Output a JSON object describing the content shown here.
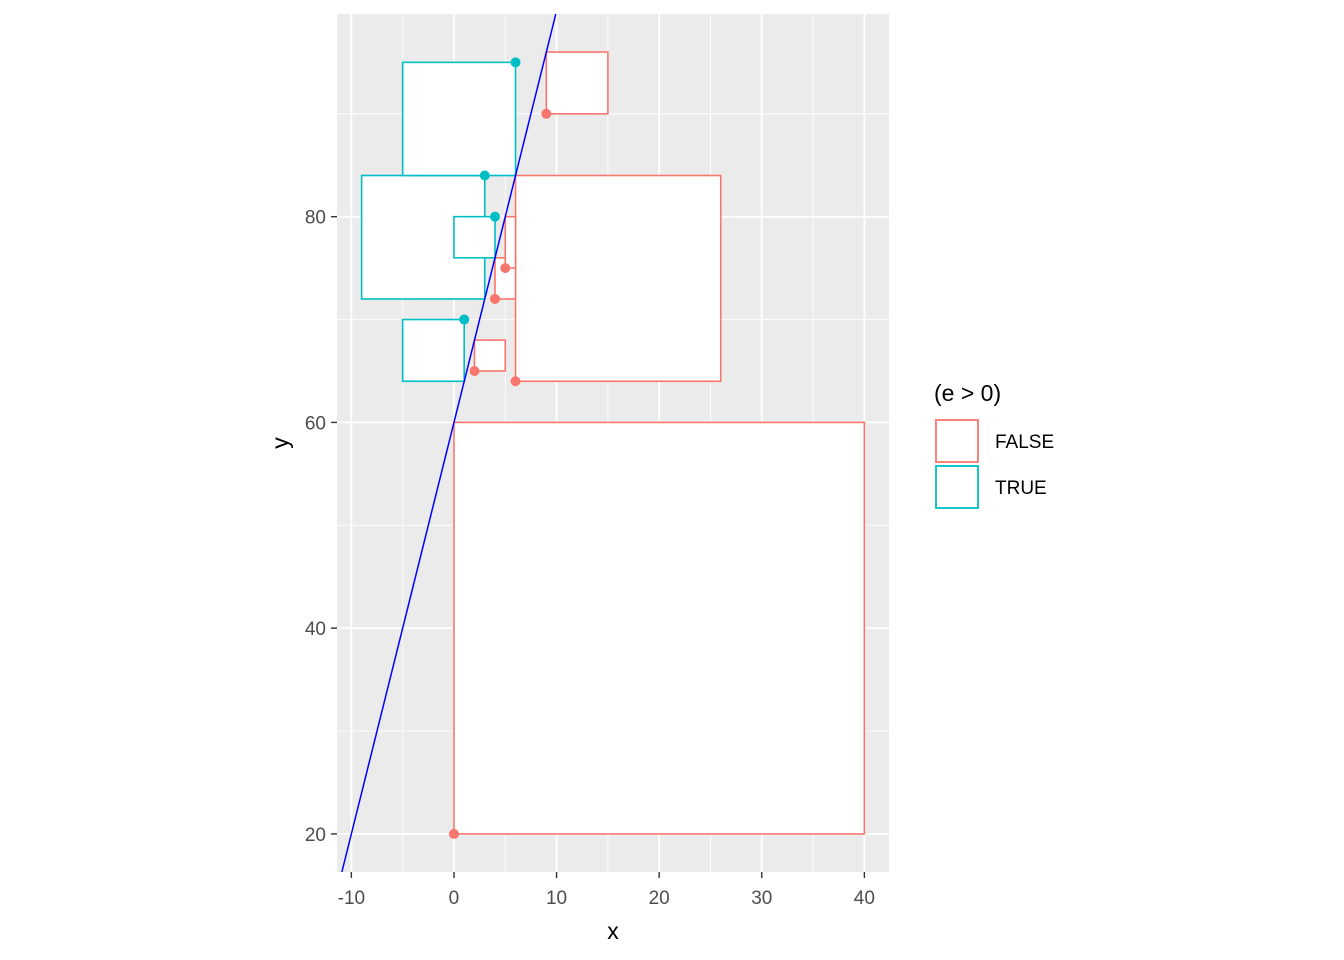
{
  "chart_data": {
    "type": "scatter",
    "title": "",
    "xlabel": "x",
    "ylabel": "y",
    "xlim": [
      -11.4,
      42.4
    ],
    "ylim": [
      16.3,
      99.7
    ],
    "x_ticks": [
      -10,
      0,
      10,
      20,
      30,
      40
    ],
    "y_ticks": [
      20,
      40,
      60,
      80
    ],
    "grid": true,
    "panel_background": "#EBEBEB",
    "legend": {
      "title": "(e > 0)",
      "position": "right",
      "entries": [
        {
          "label": "FALSE",
          "color": "#F8766D"
        },
        {
          "label": "TRUE",
          "color": "#00BFC4"
        }
      ]
    },
    "line": {
      "intercept": 60,
      "slope": 4,
      "color": "#0000FF"
    },
    "points": [
      {
        "x": 0,
        "y": 20,
        "group": "FALSE"
      },
      {
        "x": 2,
        "y": 65,
        "group": "FALSE"
      },
      {
        "x": 4,
        "y": 72,
        "group": "FALSE"
      },
      {
        "x": 5,
        "y": 75,
        "group": "FALSE"
      },
      {
        "x": 6,
        "y": 64,
        "group": "FALSE"
      },
      {
        "x": 9,
        "y": 90,
        "group": "FALSE"
      },
      {
        "x": 1,
        "y": 70,
        "group": "TRUE"
      },
      {
        "x": 3,
        "y": 84,
        "group": "TRUE"
      },
      {
        "x": 4,
        "y": 80,
        "group": "TRUE"
      },
      {
        "x": 6,
        "y": 95,
        "group": "TRUE"
      }
    ],
    "rects": [
      {
        "xmin": 0,
        "xmax": 40,
        "ymin": 20,
        "ymax": 60,
        "group": "FALSE"
      },
      {
        "xmin": 6,
        "xmax": 26,
        "ymin": 64,
        "ymax": 84,
        "group": "FALSE"
      },
      {
        "xmin": 2,
        "xmax": 5,
        "ymin": 65,
        "ymax": 68,
        "group": "FALSE"
      },
      {
        "xmin": 4,
        "xmax": 6,
        "ymin": 72,
        "ymax": 76,
        "group": "FALSE"
      },
      {
        "xmin": 5,
        "xmax": 6,
        "ymin": 75,
        "ymax": 80,
        "group": "FALSE"
      },
      {
        "xmin": 9,
        "xmax": 15,
        "ymin": 90,
        "ymax": 96,
        "group": "FALSE"
      },
      {
        "xmin": -5,
        "xmax": 1,
        "ymin": 64,
        "ymax": 70,
        "group": "TRUE"
      },
      {
        "xmin": -9,
        "xmax": 3,
        "ymin": 72,
        "ymax": 84,
        "group": "TRUE"
      },
      {
        "xmin": 0,
        "xmax": 4,
        "ymin": 76,
        "ymax": 80,
        "group": "TRUE"
      },
      {
        "xmin": -5,
        "xmax": 6,
        "ymin": 84,
        "ymax": 95,
        "group": "TRUE"
      }
    ]
  }
}
